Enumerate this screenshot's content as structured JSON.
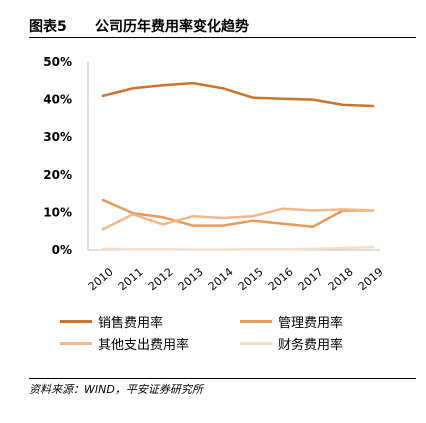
{
  "figure": {
    "label": "图表5",
    "title": "公司历年费用率变化趋势",
    "source": "资料来源：WIND，平安证券研究所"
  },
  "chart_data": {
    "type": "line",
    "categories": [
      "2010",
      "2011",
      "2012",
      "2013",
      "2014",
      "2015",
      "2016",
      "2017",
      "2018",
      "2019"
    ],
    "ylim": [
      0,
      50
    ],
    "yticks": [
      "0%",
      "10%",
      "20%",
      "30%",
      "40%",
      "50%"
    ],
    "ytick_values": [
      0,
      10,
      20,
      30,
      40,
      50
    ],
    "grid": false,
    "legend_position": "bottom",
    "series": [
      {
        "name": "销售费用率",
        "color": "#c8752f",
        "values": [
          41.0,
          43.0,
          43.8,
          44.4,
          43.0,
          40.5,
          40.2,
          40.0,
          38.6,
          38.3
        ]
      },
      {
        "name": "管理费用率",
        "color": "#e89a5a",
        "values": [
          13.3,
          9.8,
          8.7,
          6.5,
          6.5,
          7.8,
          7.0,
          6.2,
          10.5,
          10.5
        ]
      },
      {
        "name": "其他支出费用率",
        "color": "#f2b88a",
        "values": [
          5.5,
          9.5,
          6.8,
          9.0,
          8.5,
          9.0,
          11.0,
          10.5,
          10.8,
          10.5
        ]
      },
      {
        "name": "财务费用率",
        "color": "#f8ddc8",
        "values": [
          0.3,
          0.2,
          0.2,
          0.1,
          0.1,
          0.2,
          0.2,
          0.3,
          0.5,
          0.8
        ]
      }
    ]
  }
}
